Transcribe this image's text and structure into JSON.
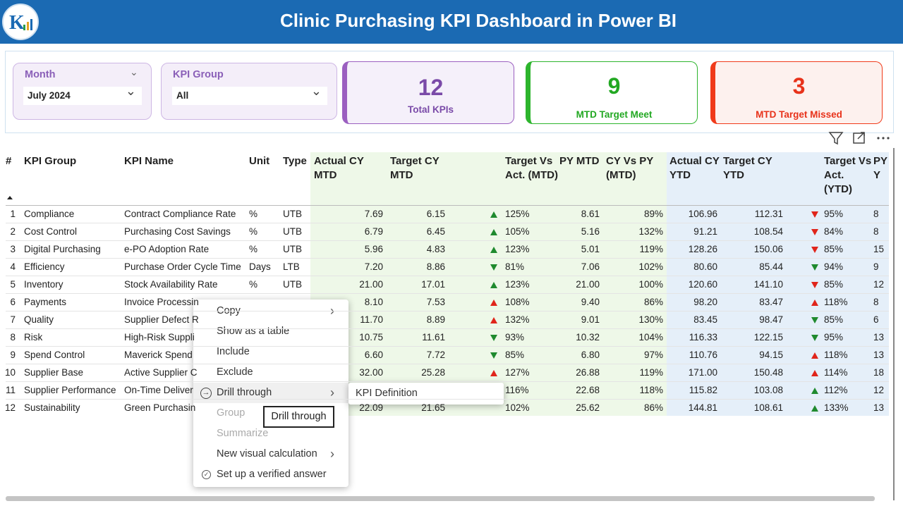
{
  "header": {
    "title": "Clinic Purchasing KPI Dashboard in Power BI"
  },
  "slicers": [
    {
      "label": "Month",
      "value": "July 2024"
    },
    {
      "label": "KPI Group",
      "value": "All"
    }
  ],
  "cards": [
    {
      "value": 12,
      "label": "Total KPIs"
    },
    {
      "value": 9,
      "label": "MTD Target Meet"
    },
    {
      "value": 3,
      "label": "MTD Target Missed"
    }
  ],
  "table": {
    "columns": [
      "#",
      "KPI Group",
      "KPI Name",
      "Unit",
      "Type",
      "Actual CY MTD",
      "Target CY MTD",
      null,
      "Target Vs Act. (MTD)",
      "PY MTD",
      "CY Vs PY (MTD)",
      "Actual CY YTD",
      "Target CY YTD",
      null,
      "Target Vs Act. (YTD)",
      "PY Y"
    ],
    "rows": [
      [
        "1",
        "Compliance",
        "Contract Compliance Rate",
        "%",
        "UTB",
        "7.69",
        "6.15",
        "up-green",
        "125%",
        "8.61",
        "89%",
        "106.96",
        "112.31",
        "down-red",
        "95%",
        "8"
      ],
      [
        "2",
        "Cost Control",
        "Purchasing Cost Savings",
        "%",
        "UTB",
        "6.79",
        "6.45",
        "up-green",
        "105%",
        "5.16",
        "132%",
        "91.21",
        "108.54",
        "down-red",
        "84%",
        "8"
      ],
      [
        "3",
        "Digital Purchasing",
        "e-PO Adoption Rate",
        "%",
        "UTB",
        "5.96",
        "4.83",
        "up-green",
        "123%",
        "5.01",
        "119%",
        "128.26",
        "150.06",
        "down-red",
        "85%",
        "15"
      ],
      [
        "4",
        "Efficiency",
        "Purchase Order Cycle Time",
        "Days",
        "LTB",
        "7.20",
        "8.86",
        "down-green",
        "81%",
        "7.06",
        "102%",
        "80.60",
        "85.44",
        "down-green",
        "94%",
        "9"
      ],
      [
        "5",
        "Inventory",
        "Stock Availability Rate",
        "%",
        "UTB",
        "21.00",
        "17.01",
        "up-green",
        "123%",
        "21.00",
        "100%",
        "120.60",
        "141.10",
        "down-red",
        "85%",
        "12"
      ],
      [
        "6",
        "Payments",
        "Invoice Processin",
        null,
        null,
        "8.10",
        "7.53",
        "up-red",
        "108%",
        "9.40",
        "86%",
        "98.20",
        "83.47",
        "up-red",
        "118%",
        "8"
      ],
      [
        "7",
        "Quality",
        "Supplier Defect R",
        null,
        null,
        "11.70",
        "8.89",
        "up-red",
        "132%",
        "9.01",
        "130%",
        "83.45",
        "98.47",
        "down-green",
        "85%",
        "6"
      ],
      [
        "8",
        "Risk",
        "High-Risk Suppli",
        null,
        null,
        "10.75",
        "11.61",
        "down-green",
        "93%",
        "10.32",
        "104%",
        "116.33",
        "122.15",
        "down-green",
        "95%",
        "13"
      ],
      [
        "9",
        "Spend Control",
        "Maverick Spend",
        null,
        null,
        "6.60",
        "7.72",
        "down-green",
        "85%",
        "6.80",
        "97%",
        "110.76",
        "94.15",
        "up-red",
        "118%",
        "13"
      ],
      [
        "10",
        "Supplier Base",
        "Active Supplier C",
        null,
        null,
        "32.00",
        "25.28",
        "up-red",
        "127%",
        "26.88",
        "119%",
        "171.00",
        "150.48",
        "up-red",
        "114%",
        "18"
      ],
      [
        "11",
        "Supplier Performance",
        "On-Time Deliver",
        null,
        null,
        null,
        null,
        null,
        "116%",
        "22.68",
        "118%",
        "115.82",
        "103.08",
        "up-green",
        "112%",
        "12"
      ],
      [
        "12",
        "Sustainability",
        "Green Purchasin",
        null,
        null,
        "22.09",
        "21.65",
        null,
        "102%",
        "25.62",
        "86%",
        "144.81",
        "108.61",
        "up-green",
        "133%",
        "13"
      ]
    ]
  },
  "context_menu": {
    "items": [
      {
        "label": "Copy",
        "submenu": true,
        "enabled": true
      },
      {
        "label": "Show as a table",
        "submenu": false,
        "enabled": true
      },
      {
        "label": "Include",
        "submenu": false,
        "enabled": true
      },
      {
        "label": "Exclude",
        "submenu": false,
        "enabled": true
      },
      {
        "label": "Drill through",
        "submenu": true,
        "enabled": true
      },
      {
        "label": "Group",
        "submenu": false,
        "enabled": false
      },
      {
        "label": "Summarize",
        "submenu": false,
        "enabled": false
      },
      {
        "label": "New visual calculation",
        "submenu": true,
        "enabled": true
      },
      {
        "label": "Set up a verified answer",
        "submenu": false,
        "enabled": true
      }
    ],
    "submenu": [
      "KPI Definition"
    ],
    "tooltip": "Drill through"
  }
}
